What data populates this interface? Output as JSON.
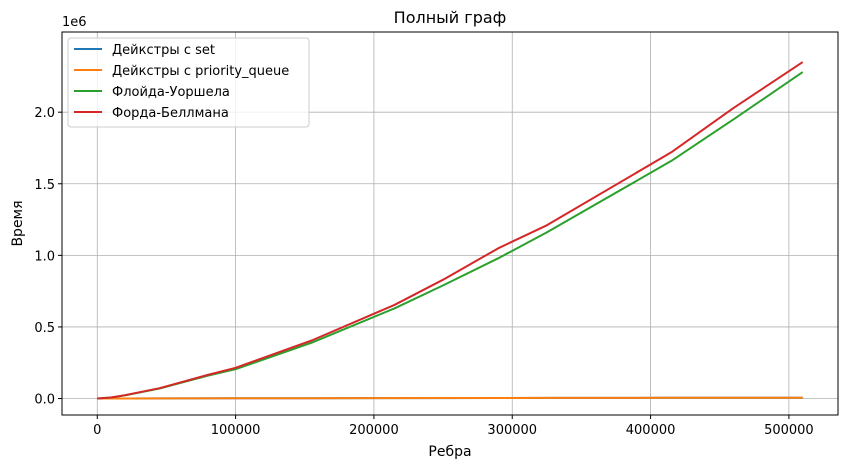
{
  "chart_data": {
    "type": "line",
    "title": "Полный граф",
    "xlabel": "Ребра",
    "ylabel": "Время",
    "y_offset_label": "1e6",
    "xlim": [
      -25500,
      535500
    ],
    "ylim": [
      -115000,
      2560000
    ],
    "xticks": [
      0,
      100000,
      200000,
      300000,
      400000,
      500000
    ],
    "xtick_labels": [
      "0",
      "100000",
      "200000",
      "300000",
      "400000",
      "500000"
    ],
    "yticks": [
      0,
      500000,
      1000000,
      1500000,
      2000000
    ],
    "ytick_labels": [
      "0.0",
      "0.5",
      "1.0",
      "1.5",
      "2.0"
    ],
    "grid": true,
    "legend_position": "top-left",
    "series": [
      {
        "name": "Дейкстры с set",
        "color": "#1f77b4",
        "x": [
          0,
          10000,
          20000,
          50000,
          100000,
          150000,
          200000,
          250000,
          290000,
          330000,
          410000,
          460000,
          510000
        ],
        "y": [
          0,
          200,
          400,
          1000,
          1600,
          2200,
          2800,
          3300,
          3800,
          4200,
          5000,
          5400,
          5800
        ]
      },
      {
        "name": "Дейкстры с priority_queue",
        "color": "#ff7f0e",
        "x": [
          0,
          10000,
          20000,
          50000,
          100000,
          150000,
          200000,
          250000,
          290000,
          330000,
          410000,
          460000,
          510000
        ],
        "y": [
          0,
          200,
          400,
          1000,
          1700,
          2300,
          2900,
          3400,
          3900,
          4300,
          5100,
          5500,
          5900
        ]
      },
      {
        "name": "Флойда-Уоршела",
        "color": "#2ca02c",
        "x": [
          0,
          10000,
          20000,
          45000,
          80000,
          100000,
          155000,
          215000,
          250000,
          290000,
          325000,
          415000,
          460000,
          510000
        ],
        "y": [
          0,
          7000,
          22000,
          70000,
          160000,
          205000,
          390000,
          630000,
          790000,
          980000,
          1160000,
          1660000,
          1950000,
          2280000
        ]
      },
      {
        "name": "Форда-Беллмана",
        "color": "#d62728",
        "x": [
          0,
          10000,
          20000,
          45000,
          80000,
          100000,
          155000,
          215000,
          250000,
          290000,
          325000,
          415000,
          460000,
          510000
        ],
        "y": [
          0,
          7500,
          23000,
          72000,
          165000,
          215000,
          405000,
          655000,
          830000,
          1050000,
          1210000,
          1720000,
          2030000,
          2350000
        ]
      }
    ]
  }
}
